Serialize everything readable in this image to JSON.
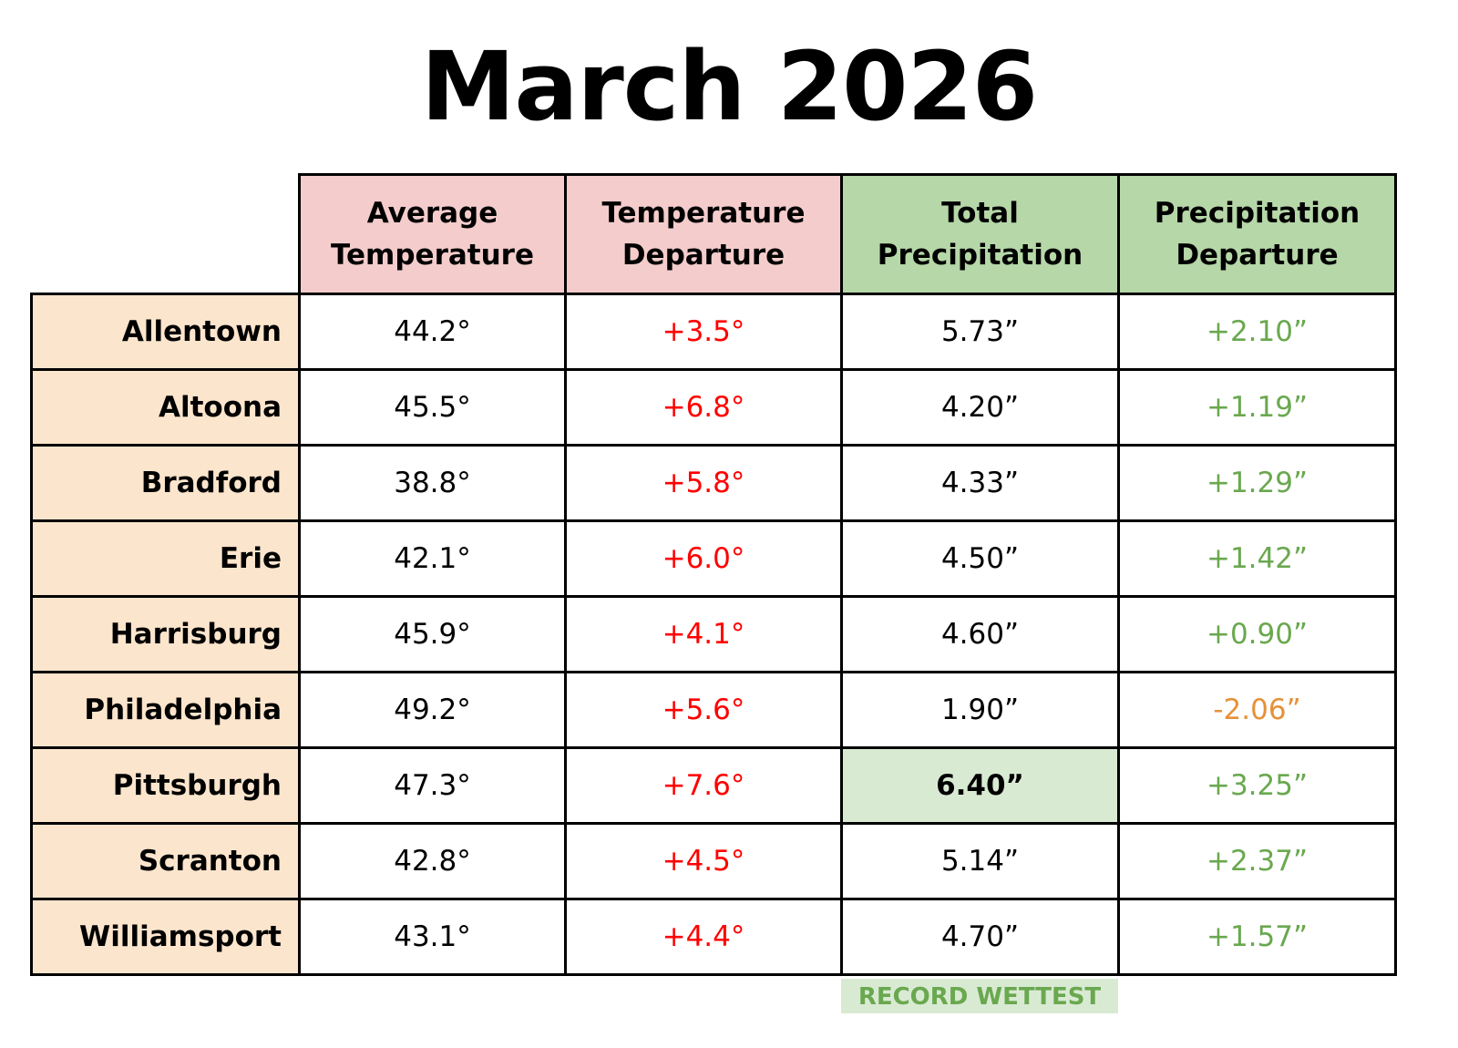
{
  "title": "March 2026",
  "headers": {
    "avg_temp": [
      "Average",
      "Temperature"
    ],
    "temp_dep": [
      "Temperature",
      "Departure"
    ],
    "total_precip": [
      "Total",
      "Precipitation"
    ],
    "precip_dep": [
      "Precipitation",
      "Departure"
    ]
  },
  "colors": {
    "temp_header": "#f4cccc",
    "precip_header": "#b6d7a8",
    "city_fill": "#fce5cd",
    "temp_departure_text": "#ff0000",
    "precip_departure_positive": "#6aa84f",
    "precip_departure_negative": "#e69138",
    "record_fill": "#d9ead3"
  },
  "note": "RECORD WETTEST",
  "chart_data": {
    "type": "table",
    "columns": [
      "Average Temperature",
      "Temperature Departure",
      "Total Precipitation",
      "Precipitation Departure"
    ],
    "rows": [
      {
        "city": "Allentown",
        "avg_temp": "44.2°",
        "temp_dep": "+3.5°",
        "total_precip": "5.73”",
        "precip_dep": "+2.10”"
      },
      {
        "city": "Altoona",
        "avg_temp": "45.5°",
        "temp_dep": "+6.8°",
        "total_precip": "4.20”",
        "precip_dep": "+1.19”"
      },
      {
        "city": "Bradford",
        "avg_temp": "38.8°",
        "temp_dep": "+5.8°",
        "total_precip": "4.33”",
        "precip_dep": "+1.29”"
      },
      {
        "city": "Erie",
        "avg_temp": "42.1°",
        "temp_dep": "+6.0°",
        "total_precip": "4.50”",
        "precip_dep": "+1.42”"
      },
      {
        "city": "Harrisburg",
        "avg_temp": "45.9°",
        "temp_dep": "+4.1°",
        "total_precip": "4.60”",
        "precip_dep": "+0.90”"
      },
      {
        "city": "Philadelphia",
        "avg_temp": "49.2°",
        "temp_dep": "+5.6°",
        "total_precip": "1.90”",
        "precip_dep": "-2.06”"
      },
      {
        "city": "Pittsburgh",
        "avg_temp": "47.3°",
        "temp_dep": "+7.6°",
        "total_precip": "6.40”",
        "precip_dep": "+3.25”",
        "record": true
      },
      {
        "city": "Scranton",
        "avg_temp": "42.8°",
        "temp_dep": "+4.5°",
        "total_precip": "5.14”",
        "precip_dep": "+2.37”"
      },
      {
        "city": "Williamsport",
        "avg_temp": "43.1°",
        "temp_dep": "+4.4°",
        "total_precip": "4.70”",
        "precip_dep": "+1.57”"
      }
    ]
  }
}
